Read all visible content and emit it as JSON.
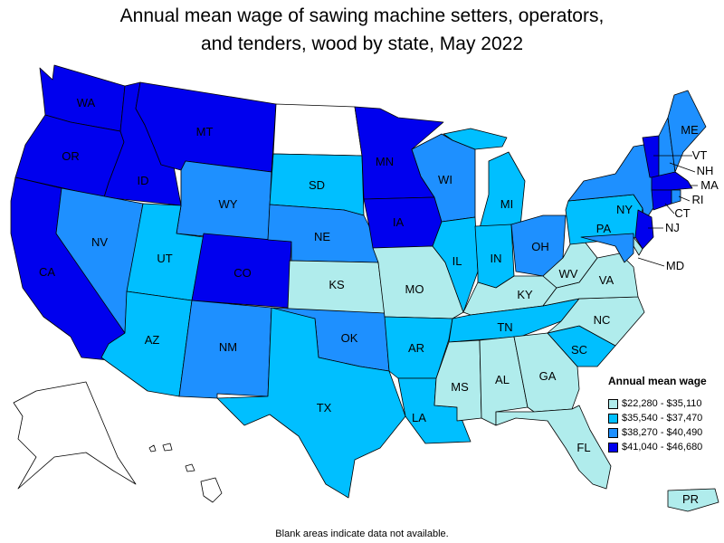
{
  "title_line1": "Annual mean wage of sawing machine setters, operators,",
  "title_line2": "and tenders, wood by state, May 2022",
  "legend": {
    "title": "Annual mean wage",
    "bins": [
      {
        "label": "$22,280 - $35,110",
        "color": "#b0ecec"
      },
      {
        "label": "$35,540 - $37,470",
        "color": "#00bfff"
      },
      {
        "label": "$38,270 - $40,490",
        "color": "#1e90ff"
      },
      {
        "label": "$41,040 - $46,680",
        "color": "#0000ee"
      }
    ]
  },
  "no_data_color": "#ffffff",
  "footnote": "Blank areas indicate data not available.",
  "states": [
    {
      "abbr": "WA",
      "bin": 3
    },
    {
      "abbr": "OR",
      "bin": 3
    },
    {
      "abbr": "CA",
      "bin": 3
    },
    {
      "abbr": "ID",
      "bin": 3
    },
    {
      "abbr": "MT",
      "bin": 3
    },
    {
      "abbr": "NV",
      "bin": 2
    },
    {
      "abbr": "WY",
      "bin": 2
    },
    {
      "abbr": "UT",
      "bin": 1
    },
    {
      "abbr": "CO",
      "bin": 3
    },
    {
      "abbr": "AZ",
      "bin": 1
    },
    {
      "abbr": "NM",
      "bin": 2
    },
    {
      "abbr": "ND",
      "bin": null
    },
    {
      "abbr": "SD",
      "bin": 1
    },
    {
      "abbr": "NE",
      "bin": 2
    },
    {
      "abbr": "KS",
      "bin": 0
    },
    {
      "abbr": "OK",
      "bin": 2
    },
    {
      "abbr": "TX",
      "bin": 1
    },
    {
      "abbr": "MN",
      "bin": 3
    },
    {
      "abbr": "IA",
      "bin": 3
    },
    {
      "abbr": "MO",
      "bin": 0
    },
    {
      "abbr": "AR",
      "bin": 1
    },
    {
      "abbr": "LA",
      "bin": 1
    },
    {
      "abbr": "WI",
      "bin": 2
    },
    {
      "abbr": "IL",
      "bin": 1
    },
    {
      "abbr": "MI",
      "bin": 1
    },
    {
      "abbr": "IN",
      "bin": 1
    },
    {
      "abbr": "OH",
      "bin": 2
    },
    {
      "abbr": "KY",
      "bin": 0
    },
    {
      "abbr": "TN",
      "bin": 1
    },
    {
      "abbr": "MS",
      "bin": 0
    },
    {
      "abbr": "AL",
      "bin": 0
    },
    {
      "abbr": "GA",
      "bin": 0
    },
    {
      "abbr": "FL",
      "bin": 0
    },
    {
      "abbr": "SC",
      "bin": 1
    },
    {
      "abbr": "NC",
      "bin": 0
    },
    {
      "abbr": "VA",
      "bin": 0
    },
    {
      "abbr": "WV",
      "bin": 0
    },
    {
      "abbr": "PA",
      "bin": 1
    },
    {
      "abbr": "NY",
      "bin": 2
    },
    {
      "abbr": "ME",
      "bin": 2
    },
    {
      "abbr": "VT",
      "bin": 3
    },
    {
      "abbr": "NH",
      "bin": 2
    },
    {
      "abbr": "MA",
      "bin": 3
    },
    {
      "abbr": "RI",
      "bin": 2
    },
    {
      "abbr": "CT",
      "bin": 3
    },
    {
      "abbr": "NJ",
      "bin": 3
    },
    {
      "abbr": "MD",
      "bin": 2
    },
    {
      "abbr": "DE",
      "bin": 0
    },
    {
      "abbr": "AK",
      "bin": null
    },
    {
      "abbr": "HI",
      "bin": null
    },
    {
      "abbr": "PR",
      "bin": 0
    }
  ]
}
